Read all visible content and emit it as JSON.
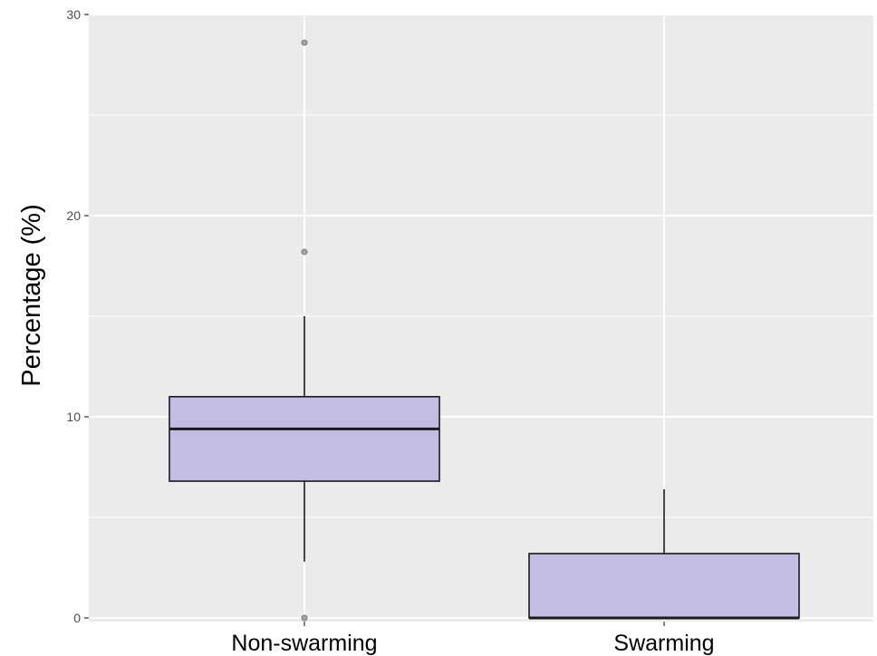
{
  "chart_data": {
    "type": "boxplot",
    "title": "",
    "xlabel": "",
    "ylabel": "Percentage (%)",
    "ylim": [
      0,
      30
    ],
    "y_ticks": [
      0,
      10,
      20,
      30
    ],
    "y_minor_ticks": [
      5,
      15,
      25
    ],
    "grid": true,
    "categories": [
      "Non-swarming",
      "Swarming"
    ],
    "boxes": [
      {
        "category": "Non-swarming",
        "whisker_low": 2.8,
        "q1": 6.8,
        "median": 9.4,
        "q3": 11.0,
        "whisker_high": 15.0,
        "outliers": [
          0,
          18.2,
          28.6
        ]
      },
      {
        "category": "Swarming",
        "whisker_low": 0,
        "q1": 0,
        "median": 0,
        "q3": 3.2,
        "whisker_high": 6.4,
        "outliers": []
      }
    ],
    "colors": {
      "panel": "#ebebeb",
      "grid": "#ffffff",
      "box_fill": "#c4bde3",
      "box_stroke": "#1a1a1a",
      "outlier": "#7f7f7f",
      "tick": "#333333"
    }
  }
}
